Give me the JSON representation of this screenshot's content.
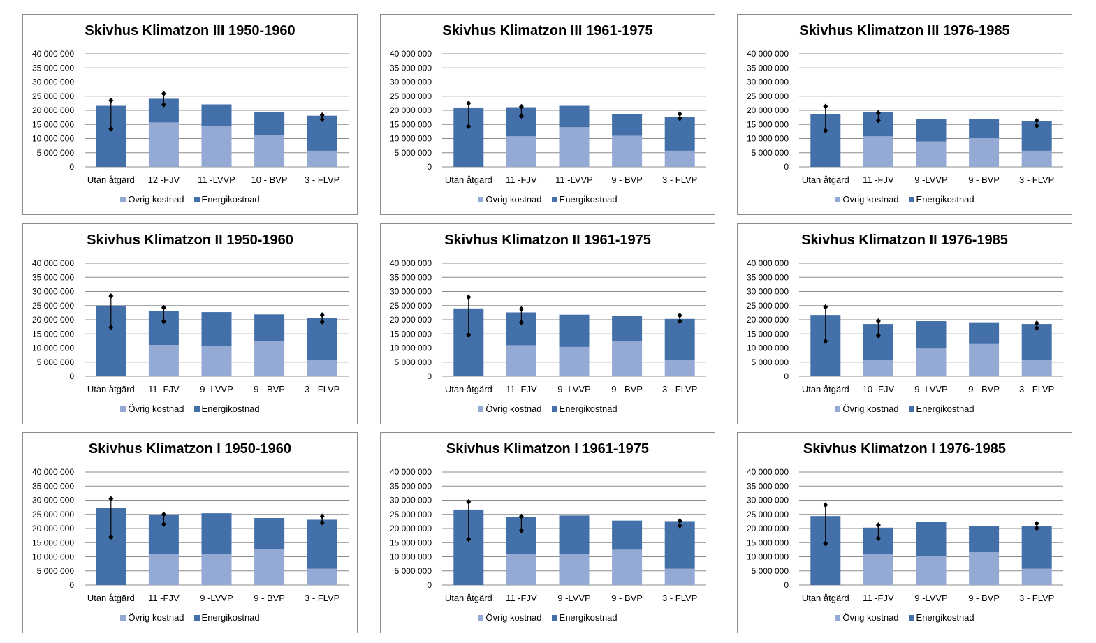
{
  "colors": {
    "ovrig": "#94a9d3",
    "energi": "#4470aa",
    "grid": "#8c8c8c",
    "marker": "#000000"
  },
  "legend": {
    "ovrig": "Övrig kostnad",
    "energi": "Energikostnad"
  },
  "chart_data": [
    {
      "type": "bar",
      "title": "Skivhus Klimatzon III 1950-1960",
      "categories": [
        "Utan åtgärd",
        "12 -FJV",
        "11 -LVVP",
        "10 - BVP",
        "3 - FLVP"
      ],
      "yticks": [
        "0",
        "5 000 000",
        "10 000 000",
        "15 000 000",
        "20 000 000",
        "25 000 000",
        "30 000 000",
        "35 000 000",
        "40 000 000"
      ],
      "ylim": [
        0,
        40000000
      ],
      "series": [
        {
          "name": "Övrig kostnad",
          "values": [
            0,
            15700000,
            14300000,
            11300000,
            5700000
          ]
        },
        {
          "name": "Energikostnad",
          "values": [
            21600000,
            8400000,
            7800000,
            8000000,
            12400000
          ]
        }
      ],
      "ranges": [
        [
          13400000,
          23500000
        ],
        [
          22000000,
          25900000
        ],
        null,
        null,
        [
          16800000,
          18300000
        ]
      ]
    },
    {
      "type": "bar",
      "title": "Skivhus Klimatzon III 1961-1975",
      "categories": [
        "Utan åtgärd",
        "11 -FJV",
        "11 -LVVP",
        "9 - BVP",
        "3 - FLVP"
      ],
      "yticks": [
        "0",
        "5 000 000",
        "10 000 000",
        "15 000 000",
        "20 000 000",
        "25 000 000",
        "30 000 000",
        "35 000 000",
        "40 000 000"
      ],
      "ylim": [
        0,
        40000000
      ],
      "series": [
        {
          "name": "Övrig kostnad",
          "values": [
            0,
            10800000,
            14000000,
            11000000,
            5700000
          ]
        },
        {
          "name": "Energikostnad",
          "values": [
            21000000,
            10300000,
            7600000,
            7700000,
            11900000
          ]
        }
      ],
      "ranges": [
        [
          14300000,
          22500000
        ],
        [
          18000000,
          21300000
        ],
        null,
        null,
        [
          17100000,
          18700000
        ]
      ]
    },
    {
      "type": "bar",
      "title": "Skivhus Klimatzon III 1976-1985",
      "categories": [
        "Utan åtgärd",
        "11 -FJV",
        "9 -LVVP",
        "9 - BVP",
        "3 - FLVP"
      ],
      "yticks": [
        "0",
        "5 000 000",
        "10 000 000",
        "15 000 000",
        "20 000 000",
        "25 000 000",
        "30 000 000",
        "35 000 000",
        "40 000 000"
      ],
      "ylim": [
        0,
        40000000
      ],
      "series": [
        {
          "name": "Övrig kostnad",
          "values": [
            0,
            10800000,
            9000000,
            10300000,
            5700000
          ]
        },
        {
          "name": "Energikostnad",
          "values": [
            18700000,
            8600000,
            7900000,
            6600000,
            10600000
          ]
        }
      ],
      "ranges": [
        [
          12800000,
          21400000
        ],
        [
          16400000,
          19100000
        ],
        null,
        null,
        [
          14500000,
          16400000
        ]
      ]
    },
    {
      "type": "bar",
      "title": "Skivhus Klimatzon II 1950-1960",
      "categories": [
        "Utan åtgärd",
        "11 -FJV",
        "9 -LVVP",
        "9 - BVP",
        "3 - FLVP"
      ],
      "yticks": [
        "0",
        "5 000 000",
        "10 000 000",
        "15 000 000",
        "20 000 000",
        "25 000 000",
        "30 000 000",
        "35 000 000",
        "40 000 000"
      ],
      "ylim": [
        0,
        40000000
      ],
      "series": [
        {
          "name": "Övrig kostnad",
          "values": [
            0,
            11100000,
            10800000,
            12500000,
            5900000
          ]
        },
        {
          "name": "Energikostnad",
          "values": [
            25000000,
            12100000,
            11900000,
            9400000,
            14700000
          ]
        }
      ],
      "ranges": [
        [
          17300000,
          28400000
        ],
        [
          19400000,
          24300000
        ],
        null,
        null,
        [
          19300000,
          21700000
        ]
      ]
    },
    {
      "type": "bar",
      "title": "Skivhus Klimatzon II 1961-1975",
      "categories": [
        "Utan åtgärd",
        "11 -FJV",
        "9 -LVVP",
        "9 - BVP",
        "3 - FLVP"
      ],
      "yticks": [
        "0",
        "5 000 000",
        "10 000 000",
        "15 000 000",
        "20 000 000",
        "25 000 000",
        "30 000 000",
        "35 000 000",
        "40 000 000"
      ],
      "ylim": [
        0,
        40000000
      ],
      "series": [
        {
          "name": "Övrig kostnad",
          "values": [
            0,
            11000000,
            10400000,
            12300000,
            5800000
          ]
        },
        {
          "name": "Energikostnad",
          "values": [
            24000000,
            11600000,
            11400000,
            9100000,
            14500000
          ]
        }
      ],
      "ranges": [
        [
          14700000,
          28000000
        ],
        [
          19000000,
          23800000
        ],
        null,
        null,
        [
          19500000,
          21500000
        ]
      ]
    },
    {
      "type": "bar",
      "title": "Skivhus Klimatzon II 1976-1985",
      "categories": [
        "Utan åtgärd",
        "10 -FJV",
        "9 -LVVP",
        "9 - BVP",
        "3 - FLVP"
      ],
      "yticks": [
        "0",
        "5 000 000",
        "10 000 000",
        "15 000 000",
        "20 000 000",
        "25 000 000",
        "30 000 000",
        "35 000 000",
        "40 000 000"
      ],
      "ylim": [
        0,
        40000000
      ],
      "series": [
        {
          "name": "Övrig kostnad",
          "values": [
            0,
            5800000,
            9800000,
            11400000,
            5700000
          ]
        },
        {
          "name": "Energikostnad",
          "values": [
            21700000,
            12700000,
            9700000,
            7700000,
            12800000
          ]
        }
      ],
      "ranges": [
        [
          12400000,
          24500000
        ],
        [
          14400000,
          19500000
        ],
        null,
        null,
        [
          17100000,
          18800000
        ]
      ]
    },
    {
      "type": "bar",
      "title": "Skivhus Klimatzon I 1950-1960",
      "categories": [
        "Utan åtgärd",
        "11 -FJV",
        "9 -LVVP",
        "9 - BVP",
        "3 - FLVP"
      ],
      "yticks": [
        "0",
        "5 000 000",
        "10 000 000",
        "15 000 000",
        "20 000 000",
        "25 000 000",
        "30 000 000",
        "35 000 000",
        "40 000 000"
      ],
      "ylim": [
        0,
        40000000
      ],
      "series": [
        {
          "name": "Övrig kostnad",
          "values": [
            0,
            11000000,
            11000000,
            12700000,
            5800000
          ]
        },
        {
          "name": "Energikostnad",
          "values": [
            27300000,
            13700000,
            14400000,
            11000000,
            17300000
          ]
        }
      ],
      "ranges": [
        [
          17000000,
          30500000
        ],
        [
          21500000,
          25000000
        ],
        null,
        null,
        [
          22100000,
          24300000
        ]
      ]
    },
    {
      "type": "bar",
      "title": "Skivhus Klimatzon I 1961-1975",
      "categories": [
        "Utan åtgärd",
        "11 -FJV",
        "9 -LVVP",
        "9 - BVP",
        "3 - FLVP"
      ],
      "yticks": [
        "0",
        "5 000 000",
        "10 000 000",
        "15 000 000",
        "20 000 000",
        "25 000 000",
        "30 000 000",
        "35 000 000",
        "40 000 000"
      ],
      "ylim": [
        0,
        40000000
      ],
      "series": [
        {
          "name": "Övrig kostnad",
          "values": [
            0,
            11000000,
            11000000,
            12500000,
            5800000
          ]
        },
        {
          "name": "Energikostnad",
          "values": [
            26700000,
            13000000,
            13600000,
            10300000,
            16800000
          ]
        }
      ],
      "ranges": [
        [
          16200000,
          29400000
        ],
        [
          19300000,
          24300000
        ],
        null,
        null,
        [
          21000000,
          22700000
        ]
      ]
    },
    {
      "type": "bar",
      "title": "Skivhus Klimatzon I 1976-1985",
      "categories": [
        "Utan åtgärd",
        "11 -FJV",
        "9 -LVVP",
        "9 - BVP",
        "3 - FLVP"
      ],
      "yticks": [
        "0",
        "5 000 000",
        "10 000 000",
        "15 000 000",
        "20 000 000",
        "25 000 000",
        "30 000 000",
        "35 000 000",
        "40 000 000"
      ],
      "ylim": [
        0,
        40000000
      ],
      "series": [
        {
          "name": "Övrig kostnad",
          "values": [
            0,
            11000000,
            10200000,
            11700000,
            5800000
          ]
        },
        {
          "name": "Energikostnad",
          "values": [
            24400000,
            9300000,
            12200000,
            9100000,
            15100000
          ]
        }
      ],
      "ranges": [
        [
          14700000,
          28300000
        ],
        [
          16500000,
          21200000
        ],
        null,
        null,
        [
          20100000,
          21800000
        ]
      ]
    }
  ]
}
